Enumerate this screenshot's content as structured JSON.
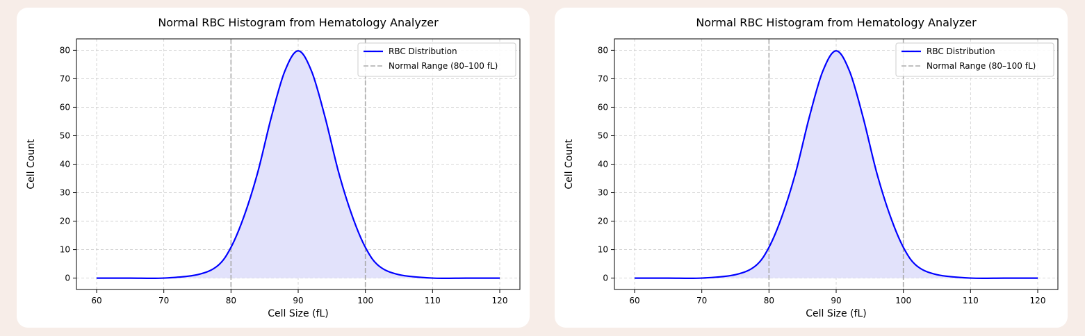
{
  "chart_data": [
    {
      "type": "line",
      "title": "Normal RBC Histogram from Hematology Analyzer",
      "xlabel": "Cell Size (fL)",
      "ylabel": "Cell Count",
      "xlim": [
        57,
        123
      ],
      "ylim": [
        -4,
        84
      ],
      "xticks": [
        60,
        70,
        80,
        90,
        100,
        110,
        120
      ],
      "yticks": [
        0,
        10,
        20,
        30,
        40,
        50,
        60,
        70,
        80
      ],
      "grid": true,
      "legend_position": "top-right",
      "series": [
        {
          "name": "RBC Distribution",
          "color": "#0000ff",
          "fill_color": "#e2e2fb",
          "x": [
            60,
            65,
            70,
            75,
            78,
            80,
            82,
            84,
            86,
            88,
            90,
            92,
            94,
            96,
            98,
            100,
            102,
            105,
            110,
            115,
            120
          ],
          "values": [
            0.0,
            0.0,
            0.01,
            1.2,
            4.3,
            10.8,
            22.1,
            37.3,
            56.5,
            72.6,
            79.8,
            72.6,
            56.5,
            37.3,
            22.1,
            10.8,
            4.3,
            1.2,
            0.01,
            0.0,
            0.0
          ]
        }
      ],
      "reference_lines": [
        {
          "name": "Normal Range (80–100 fL)",
          "x": [
            80,
            100
          ],
          "color": "#aaaaaa",
          "style": "dashed"
        }
      ]
    },
    {
      "type": "line",
      "title": "Normal RBC Histogram from Hematology Analyzer",
      "xlabel": "Cell Size (fL)",
      "ylabel": "Cell Count",
      "xlim": [
        57,
        123
      ],
      "ylim": [
        -4,
        84
      ],
      "xticks": [
        60,
        70,
        80,
        90,
        100,
        110,
        120
      ],
      "yticks": [
        0,
        10,
        20,
        30,
        40,
        50,
        60,
        70,
        80
      ],
      "grid": true,
      "legend_position": "top-right",
      "series": [
        {
          "name": "RBC Distribution",
          "color": "#0000ff",
          "fill_color": "#e2e2fb",
          "x": [
            60,
            65,
            70,
            75,
            78,
            80,
            82,
            84,
            86,
            88,
            90,
            92,
            94,
            96,
            98,
            100,
            102,
            105,
            110,
            115,
            120
          ],
          "values": [
            0.0,
            0.0,
            0.01,
            1.2,
            4.3,
            10.8,
            22.1,
            37.3,
            56.5,
            72.6,
            79.8,
            72.6,
            56.5,
            37.3,
            22.1,
            10.8,
            4.3,
            1.2,
            0.01,
            0.0,
            0.0
          ]
        }
      ],
      "reference_lines": [
        {
          "name": "Normal Range (80–100 fL)",
          "x": [
            80,
            100
          ],
          "color": "#aaaaaa",
          "style": "dashed"
        }
      ]
    }
  ]
}
